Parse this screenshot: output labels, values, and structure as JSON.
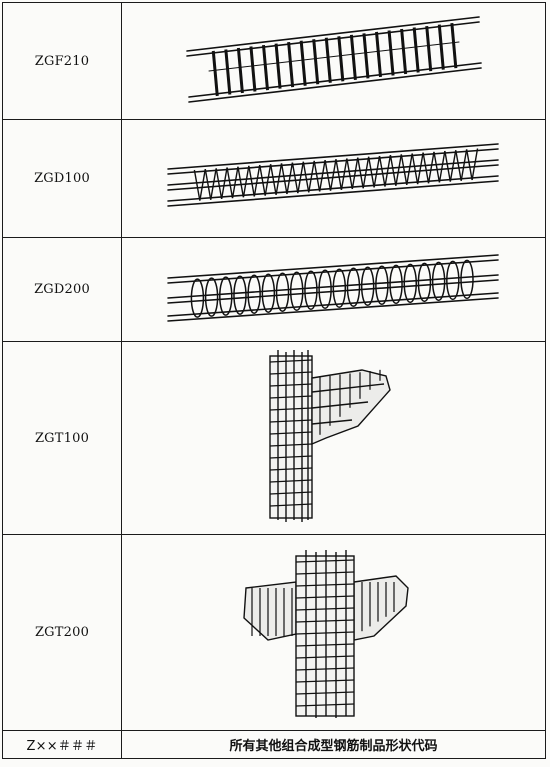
{
  "rows": [
    {
      "code": "ZGF210",
      "figure": "truss-reinforcement-cage"
    },
    {
      "code": "ZGD100",
      "figure": "triangular-truss-beam-cage"
    },
    {
      "code": "ZGD200",
      "figure": "spiral-stirrup-beam-cage"
    },
    {
      "code": "ZGT100",
      "figure": "column-with-one-side-bracket-cage"
    },
    {
      "code": "ZGT200",
      "figure": "column-with-two-side-brackets-cage"
    }
  ],
  "last_row": {
    "code": "Z××＃＃＃",
    "description": "所有其他组合成型钢筋制品形状代码"
  }
}
